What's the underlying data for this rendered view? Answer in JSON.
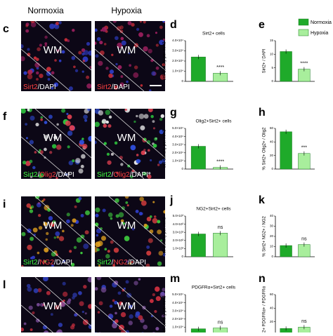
{
  "headers": [
    "Normoxia",
    "Hypoxia"
  ],
  "legend": [
    {
      "name": "Normoxia",
      "color": "#1faa2a"
    },
    {
      "name": "Hypoxia",
      "color": "#a8ee9c"
    }
  ],
  "image_rows": [
    {
      "letter": "c",
      "region": "WM",
      "stain": [
        {
          "text": "Sirt2",
          "color": "#ff4040"
        },
        {
          "text": "/DAPI",
          "color": "#ffffff"
        }
      ]
    },
    {
      "letter": "f",
      "region": "WM",
      "stain": [
        {
          "text": "Sirt2",
          "color": "#40ff40"
        },
        {
          "text": "/",
          "color": "#ffffff"
        },
        {
          "text": "Olig2",
          "color": "#ff4040"
        },
        {
          "text": "/DAPI",
          "color": "#ffffff"
        }
      ]
    },
    {
      "letter": "i",
      "region": "WM",
      "stain": [
        {
          "text": "Sirt2",
          "color": "#40ff40"
        },
        {
          "text": "/",
          "color": "#ffffff"
        },
        {
          "text": "NG2",
          "color": "#ff4040"
        },
        {
          "text": "/DAPI",
          "color": "#ffffff"
        }
      ]
    },
    {
      "letter": "l",
      "region": "WM",
      "stain": []
    }
  ],
  "chart_data": [
    {
      "type": "bar",
      "letter": "d",
      "title": "Sirt2+ cells",
      "ylabel": "cell density per mm3",
      "values": [
        24000,
        8000
      ],
      "annotation": "****",
      "ylim": [
        0,
        40000
      ],
      "yticks": [
        0,
        {
          "value": 10000,
          "label": "1.0×10⁴"
        },
        {
          "value": 20000,
          "label": "2.0×10⁴"
        },
        {
          "value": 30000,
          "label": "3.0×10⁴"
        },
        {
          "value": 40000,
          "label": "4.0×10⁴"
        }
      ]
    },
    {
      "type": "bar",
      "letter": "e",
      "ylabel": "Sirt2+ / DAPI",
      "values": [
        11,
        4.5
      ],
      "annotation": "****",
      "ylim": [
        0,
        15
      ],
      "yticks": [
        0,
        5,
        10,
        15
      ]
    },
    {
      "type": "bar",
      "letter": "g",
      "title": "Olig2+Sirt2+ cells",
      "ylabel": "cell density per mm3",
      "values": [
        28000,
        2000
      ],
      "annotation": "****",
      "ylim": [
        0,
        50000
      ],
      "yticks": [
        0,
        {
          "value": 10000,
          "label": "1.0×10⁴"
        },
        {
          "value": 20000,
          "label": "2.0×10⁴"
        },
        {
          "value": 30000,
          "label": "3.0×10⁴"
        },
        {
          "value": 40000,
          "label": "4.0×10⁴"
        },
        {
          "value": 50000,
          "label": "5.0×10⁴"
        }
      ]
    },
    {
      "type": "bar",
      "letter": "h",
      "ylabel": "% Sirt2+ Olig2+ / Olig2",
      "values": [
        55,
        23
      ],
      "annotation": "***",
      "ylim": [
        0,
        60
      ],
      "yticks": [
        0,
        20,
        40,
        60
      ]
    },
    {
      "type": "bar",
      "letter": "j",
      "title": "NG2+Sirt2+ cells",
      "ylabel": "cell density per mm3",
      "values": [
        2800,
        2900
      ],
      "annotation": "ns",
      "ylim": [
        0,
        5000
      ],
      "yticks": [
        0,
        {
          "value": 1000,
          "label": "1.0×10³"
        },
        {
          "value": 2000,
          "label": "2.0×10³"
        },
        {
          "value": 3000,
          "label": "3.0×10³"
        },
        {
          "value": 4000,
          "label": "4.0×10³"
        },
        {
          "value": 5000,
          "label": "5.0×10³"
        }
      ]
    },
    {
      "type": "bar",
      "letter": "k",
      "ylabel": "% Sirt2+ NG2+ / NG2",
      "values": [
        11,
        12
      ],
      "annotation": "ns",
      "ylim": [
        0,
        40
      ],
      "yticks": [
        0,
        10,
        20,
        30,
        40
      ]
    },
    {
      "type": "bar",
      "letter": "m",
      "title": "PDGFRα+Sirt2+ cells",
      "ylabel": "cell density per mm3",
      "values": [
        8000,
        9000
      ],
      "annotation": "ns",
      "ylim": [
        0,
        50000
      ],
      "yticks": [
        0,
        {
          "value": 10000,
          "label": "1.0×10⁴"
        },
        {
          "value": 20000,
          "label": "2.0×10⁴"
        },
        {
          "value": 30000,
          "label": "3.0×10⁴"
        },
        {
          "value": 40000,
          "label": "4.0×10⁴"
        },
        {
          "value": 50000,
          "label": "5.0×10⁴"
        }
      ]
    },
    {
      "type": "bar",
      "letter": "n",
      "ylabel": "% Sirt2+ PDGFRα+ / PDGFRα",
      "values": [
        10,
        12
      ],
      "annotation": "ns",
      "ylim": [
        0,
        60
      ],
      "yticks": [
        0,
        20,
        40,
        60
      ]
    }
  ]
}
